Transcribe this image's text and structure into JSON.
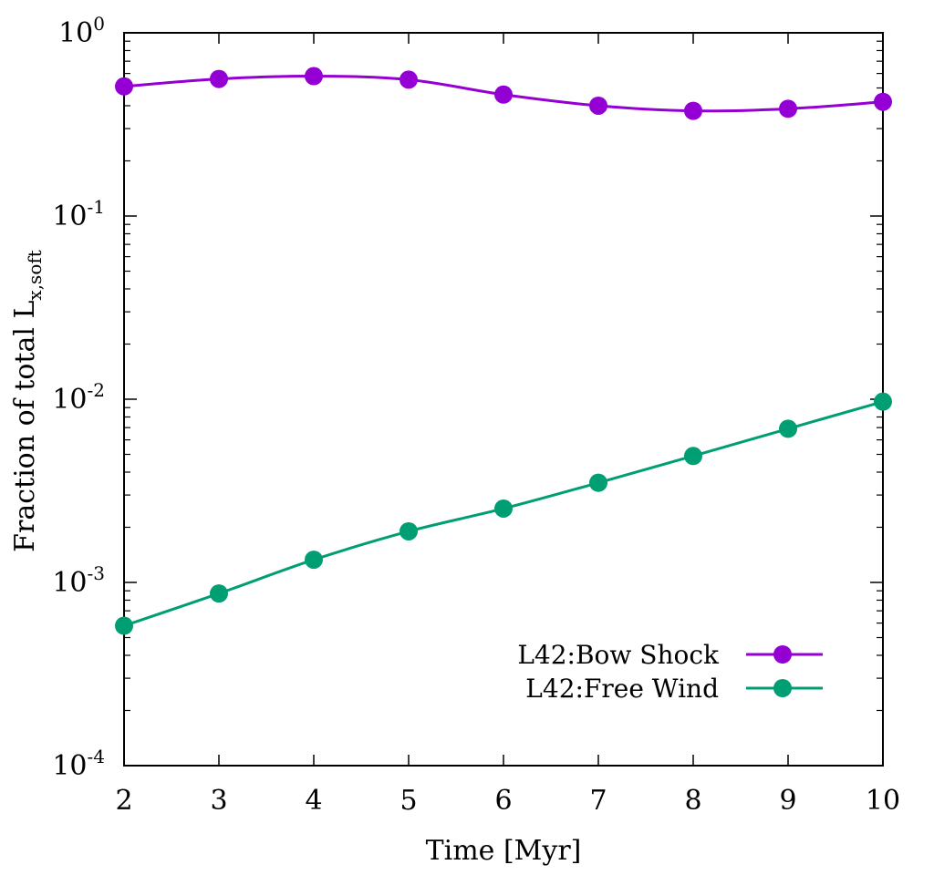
{
  "chart_data": {
    "type": "line",
    "title": "",
    "xlabel": "Time [Myr]",
    "ylabel": {
      "main": "Fraction of total L",
      "subscript": "x,soft"
    },
    "x_scale": "linear",
    "y_scale": "log",
    "xlim": [
      2,
      10
    ],
    "ylim": [
      0.0001,
      1
    ],
    "x_ticks": [
      "2",
      "3",
      "4",
      "5",
      "6",
      "7",
      "8",
      "9",
      "10"
    ],
    "y_ticks": [
      {
        "base": "10",
        "exp": "-4"
      },
      {
        "base": "10",
        "exp": "-3"
      },
      {
        "base": "10",
        "exp": "-2"
      },
      {
        "base": "10",
        "exp": "-1"
      },
      {
        "base": "10",
        "exp": "0"
      }
    ],
    "grid": false,
    "legend_position": "bottom-right",
    "series": [
      {
        "name": "L42:Bow Shock",
        "color": "#9400d3",
        "x": [
          2,
          3,
          4,
          5,
          6,
          7,
          8,
          9,
          10
        ],
        "values": [
          0.51,
          0.56,
          0.58,
          0.555,
          0.46,
          0.4,
          0.375,
          0.385,
          0.42
        ]
      },
      {
        "name": "L42:Free Wind",
        "color": "#009e73",
        "x": [
          2,
          3,
          4,
          5,
          6,
          7,
          8,
          9,
          10
        ],
        "values": [
          0.00058,
          0.00087,
          0.00133,
          0.0019,
          0.00253,
          0.0035,
          0.0049,
          0.0069,
          0.0097
        ]
      }
    ]
  }
}
